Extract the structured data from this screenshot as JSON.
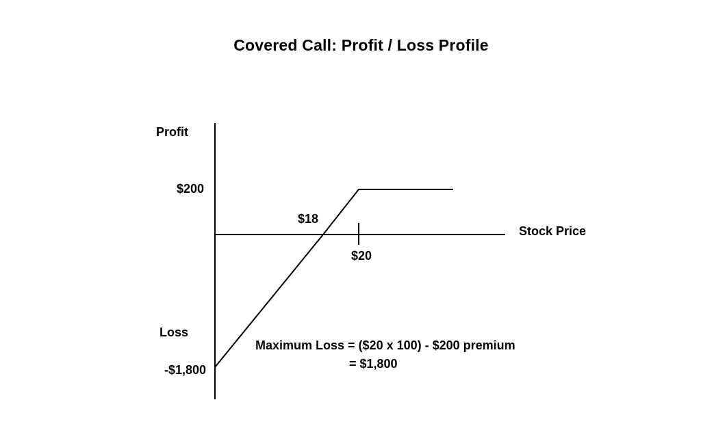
{
  "title": "Covered Call: Profit / Loss Profile",
  "axis_labels": {
    "y_top": "Profit",
    "y_bottom": "Loss",
    "x": "Stock Price"
  },
  "value_labels": {
    "profit_max": "$200",
    "loss_max": "-$1,800",
    "breakeven": "$18",
    "strike": "$20"
  },
  "note": {
    "line1": "Maximum Loss = ($20 x 100) - $200 premium",
    "line2": "= $1,800"
  },
  "payoff": {
    "points": [
      {
        "price": 0,
        "profit": -1800
      },
      {
        "price": 18,
        "profit": 0
      },
      {
        "price": 20,
        "profit": 200
      },
      {
        "price": 32,
        "profit": 200
      }
    ],
    "breakeven_price": 18,
    "strike_price": 20,
    "max_profit": 200,
    "max_loss": -1800
  },
  "colors": {
    "line": "#000000",
    "background": "#ffffff"
  }
}
